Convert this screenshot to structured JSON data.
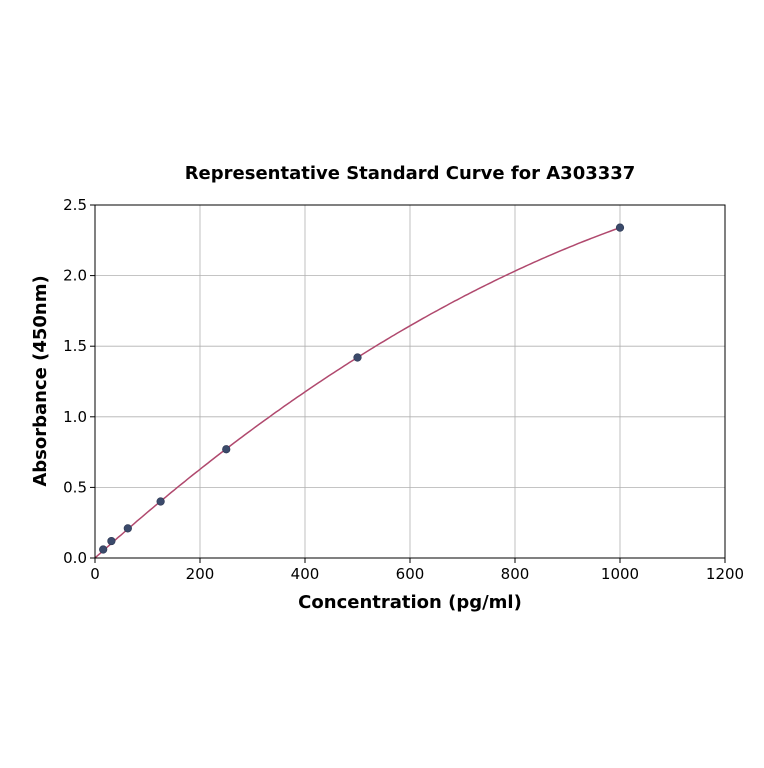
{
  "chart_data": {
    "type": "scatter",
    "title": "Representative Standard Curve for A303337",
    "xlabel": "Concentration (pg/ml)",
    "ylabel": "Absorbance (450nm)",
    "xlim": [
      0,
      1200
    ],
    "ylim": [
      0,
      2.5
    ],
    "xticks": [
      0,
      200,
      400,
      600,
      800,
      1000,
      1200
    ],
    "yticks": [
      "0.0",
      "0.5",
      "1.0",
      "1.5",
      "2.0",
      "2.5"
    ],
    "grid": true,
    "points": [
      {
        "x": 15.6,
        "y": 0.06
      },
      {
        "x": 31.25,
        "y": 0.12
      },
      {
        "x": 62.5,
        "y": 0.21
      },
      {
        "x": 125,
        "y": 0.4
      },
      {
        "x": 250,
        "y": 0.77
      },
      {
        "x": 500,
        "y": 1.42
      },
      {
        "x": 1000,
        "y": 2.34
      }
    ],
    "fit_curve": true,
    "colors": {
      "point": "#3b4a6b",
      "curve": "#b0496e",
      "grid": "#b0b0b0"
    }
  }
}
